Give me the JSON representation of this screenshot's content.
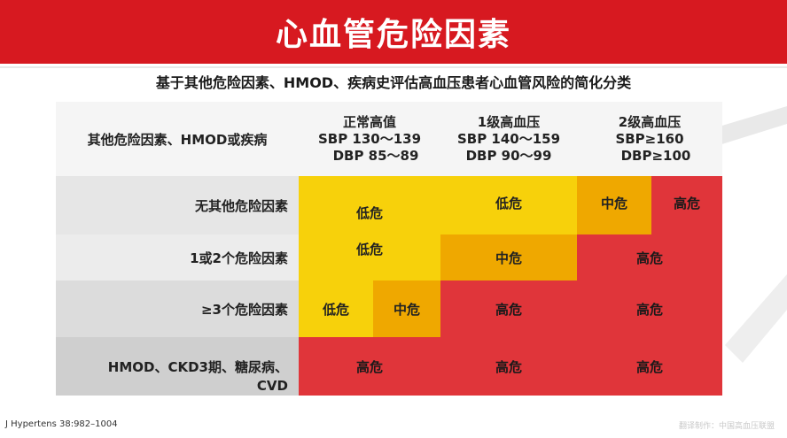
{
  "title": "心血管危险因素",
  "subtitle": "基于其他危险因素、HMOD、疾病史评估高血压患者心血管风险的简化分类",
  "header": {
    "corner": "其他危险因素、HMOD或疾病",
    "columns": [
      {
        "line1": "正常高值",
        "line2": "SBP 130～139",
        "line3": "DBP 85～89"
      },
      {
        "line1": "1级高血压",
        "line2": "SBP 140～159",
        "line3": "DBP 90～99"
      },
      {
        "line1": "2级高血压",
        "line2": "SBP≥160",
        "line3": "DBP≥100"
      }
    ]
  },
  "rows": [
    {
      "label": "无其他危险因素"
    },
    {
      "label": "1或2个危险因素"
    },
    {
      "label": "≥3个危险因素"
    },
    {
      "label_line1": "HMOD、CKD3期、糖尿病、",
      "label_line2": "CVD"
    }
  ],
  "risk": {
    "low": "低危",
    "medium": "中危",
    "high": "高危"
  },
  "colors": {
    "title_bar": "#d71920",
    "low": "#f7d10b",
    "medium": "#efa800",
    "high": "#e0353a"
  },
  "footer": {
    "citation": "J Hypertens 38:982–1004",
    "credit": "翻译制作：中国高血压联盟"
  }
}
